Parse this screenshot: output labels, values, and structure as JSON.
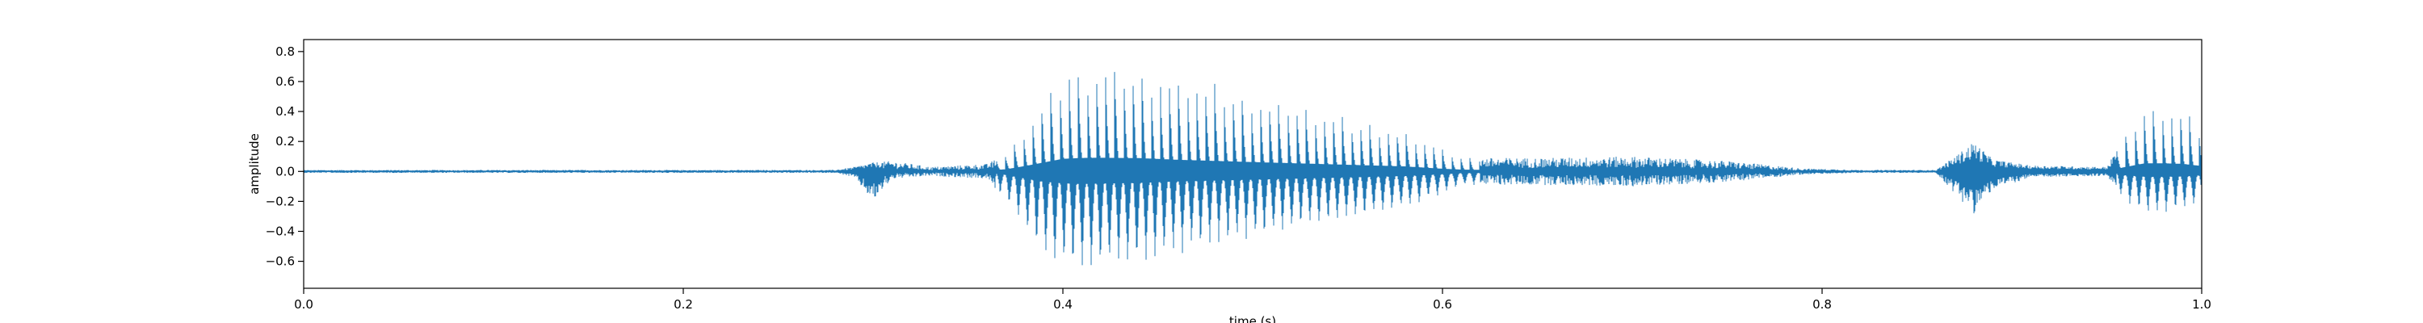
{
  "chart_data": {
    "type": "line",
    "xlabel": "time (s)",
    "ylabel": "amplitude",
    "xlim": [
      0.0,
      1.0
    ],
    "ylim": [
      -0.78,
      0.88
    ],
    "xticks": [
      0.0,
      0.2,
      0.4,
      0.6,
      0.8,
      1.0
    ],
    "xtick_labels": [
      "0.0",
      "0.2",
      "0.4",
      "0.6",
      "0.8",
      "1.0"
    ],
    "yticks": [
      -0.6,
      -0.4,
      -0.2,
      0.0,
      0.2,
      0.4,
      0.6,
      0.8
    ],
    "ytick_labels": [
      "−0.6",
      "−0.4",
      "−0.2",
      "0.0",
      "0.2",
      "0.4",
      "0.6",
      "0.8"
    ],
    "grid": false,
    "line_color": "#1f77b4",
    "series": [
      {
        "envelope_upper": {
          "t": [
            0.0,
            0.1,
            0.2,
            0.28,
            0.29,
            0.3,
            0.31,
            0.33,
            0.36,
            0.37,
            0.38,
            0.39,
            0.4,
            0.41,
            0.42,
            0.44,
            0.46,
            0.5,
            0.54,
            0.58,
            0.6,
            0.61,
            0.62,
            0.65,
            0.7,
            0.75,
            0.79,
            0.82,
            0.86,
            0.87,
            0.88,
            0.89,
            0.91,
            0.95,
            0.96,
            0.97,
            0.98,
            0.99,
            1.0
          ],
          "amp": [
            0.01,
            0.01,
            0.01,
            0.01,
            0.03,
            0.06,
            0.07,
            0.03,
            0.05,
            0.12,
            0.3,
            0.5,
            0.7,
            0.75,
            0.76,
            0.74,
            0.65,
            0.52,
            0.4,
            0.28,
            0.15,
            0.1,
            0.09,
            0.09,
            0.1,
            0.07,
            0.02,
            0.01,
            0.01,
            0.1,
            0.2,
            0.08,
            0.04,
            0.03,
            0.25,
            0.45,
            0.45,
            0.42,
            0.3
          ]
        },
        "envelope_lower": {
          "t": [
            0.0,
            0.1,
            0.2,
            0.28,
            0.29,
            0.3,
            0.31,
            0.33,
            0.36,
            0.37,
            0.38,
            0.39,
            0.4,
            0.41,
            0.42,
            0.44,
            0.46,
            0.5,
            0.54,
            0.58,
            0.6,
            0.61,
            0.62,
            0.65,
            0.7,
            0.75,
            0.79,
            0.82,
            0.86,
            0.87,
            0.88,
            0.89,
            0.91,
            0.95,
            0.96,
            0.97,
            0.98,
            0.99,
            1.0
          ],
          "amp": [
            -0.01,
            -0.01,
            -0.01,
            -0.01,
            -0.04,
            -0.2,
            -0.05,
            -0.03,
            -0.05,
            -0.2,
            -0.4,
            -0.58,
            -0.66,
            -0.7,
            -0.68,
            -0.64,
            -0.56,
            -0.46,
            -0.36,
            -0.26,
            -0.16,
            -0.1,
            -0.09,
            -0.09,
            -0.1,
            -0.07,
            -0.02,
            -0.01,
            -0.01,
            -0.15,
            -0.28,
            -0.12,
            -0.04,
            -0.03,
            -0.22,
            -0.3,
            -0.3,
            -0.28,
            -0.22
          ]
        }
      }
    ]
  }
}
